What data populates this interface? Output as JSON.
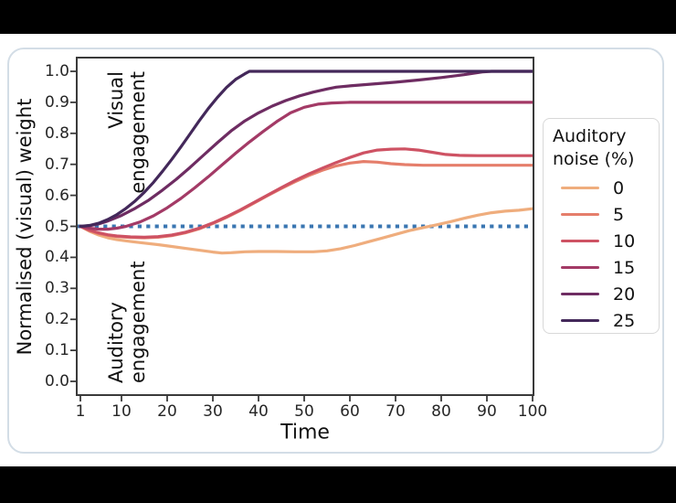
{
  "figure": {
    "background_color": "#000000",
    "card_background": "#ffffff",
    "card_border_color": "#d3dde6",
    "axis_color": "#3a3a3a",
    "text_color": "#1f1f1f"
  },
  "chart_data": {
    "type": "line",
    "title": "",
    "xlabel": "Time",
    "ylabel": "Normalised (visual) weight",
    "xlim": [
      1,
      100
    ],
    "ylim": [
      0.0,
      1.0
    ],
    "grid": false,
    "xticks": [
      "1",
      "10",
      "20",
      "30",
      "40",
      "50",
      "60",
      "70",
      "80",
      "90",
      "100"
    ],
    "yticks": [
      "0.0",
      "0.1",
      "0.2",
      "0.3",
      "0.4",
      "0.5",
      "0.6",
      "0.7",
      "0.8",
      "0.9",
      "1.0"
    ],
    "legend_title": "Auditory noise (%)",
    "legend_position": "right",
    "annotations": {
      "upper": "Visual engagement",
      "lower": "Auditory engagement"
    },
    "reference_line": {
      "y": 0.5,
      "style": "dotted",
      "color": "#3a76b1"
    },
    "series": [
      {
        "name": "0",
        "color": "#efad7d",
        "points": [
          [
            1,
            0.5
          ],
          [
            3,
            0.484
          ],
          [
            5,
            0.472
          ],
          [
            7,
            0.463
          ],
          [
            9,
            0.457
          ],
          [
            12,
            0.451
          ],
          [
            15,
            0.446
          ],
          [
            18,
            0.441
          ],
          [
            21,
            0.435
          ],
          [
            24,
            0.429
          ],
          [
            27,
            0.423
          ],
          [
            30,
            0.417
          ],
          [
            32,
            0.414
          ],
          [
            34,
            0.415
          ],
          [
            37,
            0.418
          ],
          [
            40,
            0.419
          ],
          [
            44,
            0.419
          ],
          [
            48,
            0.418
          ],
          [
            52,
            0.418
          ],
          [
            55,
            0.421
          ],
          [
            58,
            0.428
          ],
          [
            61,
            0.438
          ],
          [
            64,
            0.45
          ],
          [
            67,
            0.462
          ],
          [
            70,
            0.474
          ],
          [
            73,
            0.486
          ],
          [
            76,
            0.496
          ],
          [
            79,
            0.505
          ],
          [
            82,
            0.515
          ],
          [
            85,
            0.526
          ],
          [
            88,
            0.536
          ],
          [
            91,
            0.544
          ],
          [
            94,
            0.549
          ],
          [
            97,
            0.552
          ],
          [
            100,
            0.557
          ]
        ]
      },
      {
        "name": "5",
        "color": "#e57e6b",
        "points": [
          [
            1,
            0.5
          ],
          [
            3,
            0.486
          ],
          [
            5,
            0.477
          ],
          [
            7,
            0.471
          ],
          [
            9,
            0.467
          ],
          [
            12,
            0.464
          ],
          [
            15,
            0.463
          ],
          [
            18,
            0.465
          ],
          [
            21,
            0.47
          ],
          [
            24,
            0.479
          ],
          [
            27,
            0.492
          ],
          [
            30,
            0.509
          ],
          [
            33,
            0.529
          ],
          [
            36,
            0.551
          ],
          [
            39,
            0.575
          ],
          [
            42,
            0.599
          ],
          [
            45,
            0.622
          ],
          [
            48,
            0.644
          ],
          [
            51,
            0.664
          ],
          [
            54,
            0.681
          ],
          [
            57,
            0.695
          ],
          [
            60,
            0.704
          ],
          [
            63,
            0.709
          ],
          [
            66,
            0.707
          ],
          [
            69,
            0.702
          ],
          [
            72,
            0.699
          ],
          [
            76,
            0.697
          ],
          [
            100,
            0.697
          ]
        ]
      },
      {
        "name": "10",
        "color": "#ce5263",
        "points": [
          [
            1,
            0.5
          ],
          [
            3,
            0.488
          ],
          [
            5,
            0.479
          ],
          [
            7,
            0.473
          ],
          [
            9,
            0.469
          ],
          [
            12,
            0.466
          ],
          [
            15,
            0.465
          ],
          [
            18,
            0.467
          ],
          [
            21,
            0.472
          ],
          [
            24,
            0.481
          ],
          [
            27,
            0.494
          ],
          [
            30,
            0.511
          ],
          [
            33,
            0.531
          ],
          [
            36,
            0.553
          ],
          [
            39,
            0.577
          ],
          [
            42,
            0.601
          ],
          [
            45,
            0.625
          ],
          [
            48,
            0.648
          ],
          [
            51,
            0.669
          ],
          [
            54,
            0.688
          ],
          [
            57,
            0.706
          ],
          [
            60,
            0.722
          ],
          [
            63,
            0.737
          ],
          [
            66,
            0.746
          ],
          [
            69,
            0.749
          ],
          [
            72,
            0.75
          ],
          [
            75,
            0.746
          ],
          [
            78,
            0.739
          ],
          [
            81,
            0.732
          ],
          [
            84,
            0.729
          ],
          [
            88,
            0.728
          ],
          [
            100,
            0.728
          ]
        ]
      },
      {
        "name": "15",
        "color": "#a33a66",
        "points": [
          [
            1,
            0.5
          ],
          [
            3,
            0.494
          ],
          [
            5,
            0.491
          ],
          [
            7,
            0.491
          ],
          [
            9,
            0.494
          ],
          [
            11,
            0.5
          ],
          [
            14,
            0.514
          ],
          [
            17,
            0.534
          ],
          [
            20,
            0.56
          ],
          [
            23,
            0.59
          ],
          [
            26,
            0.624
          ],
          [
            29,
            0.66
          ],
          [
            32,
            0.698
          ],
          [
            35,
            0.736
          ],
          [
            38,
            0.772
          ],
          [
            41,
            0.806
          ],
          [
            44,
            0.838
          ],
          [
            47,
            0.866
          ],
          [
            50,
            0.884
          ],
          [
            53,
            0.894
          ],
          [
            56,
            0.898
          ],
          [
            60,
            0.9
          ],
          [
            100,
            0.9
          ]
        ]
      },
      {
        "name": "20",
        "color": "#6e2c62",
        "points": [
          [
            1,
            0.5
          ],
          [
            3,
            0.502
          ],
          [
            5,
            0.508
          ],
          [
            7,
            0.517
          ],
          [
            10,
            0.535
          ],
          [
            13,
            0.558
          ],
          [
            16,
            0.585
          ],
          [
            19,
            0.617
          ],
          [
            22,
            0.652
          ],
          [
            25,
            0.69
          ],
          [
            28,
            0.73
          ],
          [
            31,
            0.77
          ],
          [
            34,
            0.808
          ],
          [
            37,
            0.84
          ],
          [
            40,
            0.866
          ],
          [
            43,
            0.888
          ],
          [
            46,
            0.906
          ],
          [
            49,
            0.921
          ],
          [
            52,
            0.933
          ],
          [
            55,
            0.943
          ],
          [
            57,
            0.949
          ],
          [
            60,
            0.953
          ],
          [
            65,
            0.959
          ],
          [
            70,
            0.965
          ],
          [
            75,
            0.972
          ],
          [
            80,
            0.98
          ],
          [
            85,
            0.989
          ],
          [
            89,
            0.998
          ],
          [
            91,
            1.0
          ],
          [
            100,
            1.0
          ]
        ]
      },
      {
        "name": "25",
        "color": "#43285a",
        "points": [
          [
            1,
            0.5
          ],
          [
            3,
            0.503
          ],
          [
            5,
            0.51
          ],
          [
            7,
            0.522
          ],
          [
            9,
            0.538
          ],
          [
            11,
            0.558
          ],
          [
            13,
            0.582
          ],
          [
            15,
            0.61
          ],
          [
            17,
            0.642
          ],
          [
            19,
            0.678
          ],
          [
            21,
            0.716
          ],
          [
            23,
            0.756
          ],
          [
            25,
            0.798
          ],
          [
            27,
            0.84
          ],
          [
            29,
            0.88
          ],
          [
            31,
            0.916
          ],
          [
            33,
            0.948
          ],
          [
            35,
            0.974
          ],
          [
            37,
            0.992
          ],
          [
            38,
            1.0
          ],
          [
            100,
            1.0
          ]
        ]
      }
    ]
  }
}
